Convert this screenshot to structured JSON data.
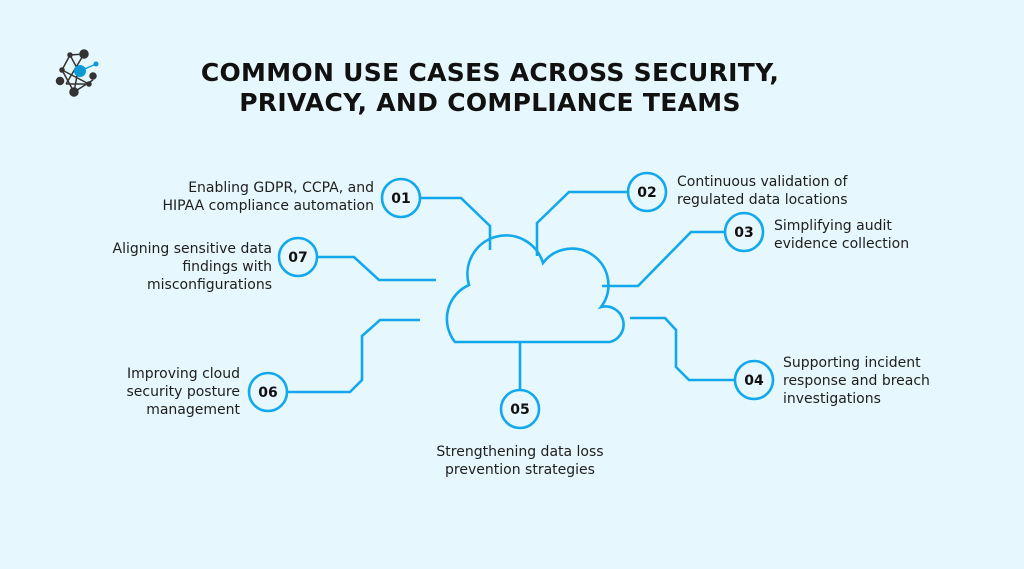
{
  "title": {
    "line1": "COMMON USE CASES ACROSS SECURITY,",
    "line2": "PRIVACY, AND COMPLIANCE TEAMS"
  },
  "colors": {
    "accent": "#12a8ec",
    "background": "#e6f7fd",
    "text": "#1e1e1e",
    "logo_dark": "#333333",
    "logo_accent": "#0a9bd6"
  },
  "logo_icon": "network-nodes-logo",
  "center_icon": "cloud-icon",
  "items": [
    {
      "number": "01",
      "line1": "Enabling GDPR, CCPA, and",
      "line2": "HIPAA compliance automation"
    },
    {
      "number": "02",
      "line1": "Continuous validation of",
      "line2": "regulated data locations"
    },
    {
      "number": "03",
      "line1": "Simplifying audit",
      "line2": "evidence collection"
    },
    {
      "number": "04",
      "line1": "Supporting incident",
      "line2": "response and breach",
      "line3": "investigations"
    },
    {
      "number": "05",
      "line1": "Strengthening data loss",
      "line2": "prevention strategies"
    },
    {
      "number": "06",
      "line1": "Improving cloud",
      "line2": "security posture",
      "line3": "management"
    },
    {
      "number": "07",
      "line1": "Aligning sensitive data",
      "line2": "findings with",
      "line3": "misconfigurations"
    }
  ]
}
